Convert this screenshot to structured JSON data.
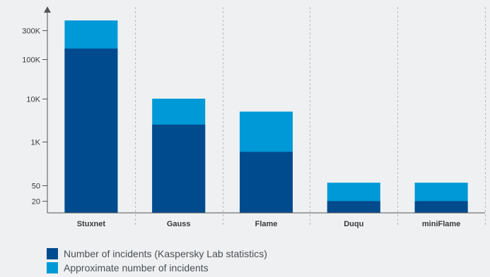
{
  "chart_data": {
    "type": "bar",
    "stacked": true,
    "scale": "log",
    "categories": [
      "Stuxnet",
      "Gauss",
      "Flame",
      "Duqu",
      "miniFlame"
    ],
    "series": [
      {
        "name": "Number of incidents (Kaspersky Lab statistics)",
        "color": "#004b8d",
        "values": [
          150000,
          2500,
          500,
          19,
          19
        ]
      },
      {
        "name": "Approximate number of incidents",
        "color": "#0099d8",
        "values": [
          400000,
          10000,
          5000,
          60,
          60
        ]
      }
    ],
    "yticks": [
      {
        "value": 20,
        "label": "20"
      },
      {
        "value": 50,
        "label": "50"
      },
      {
        "value": 1000,
        "label": "1K"
      },
      {
        "value": 10000,
        "label": "10K"
      },
      {
        "value": 100000,
        "label": "100K"
      },
      {
        "value": 300000,
        "label": "300K"
      }
    ],
    "legend_position": "bottom-left",
    "grid": "vertical dashed separators"
  }
}
